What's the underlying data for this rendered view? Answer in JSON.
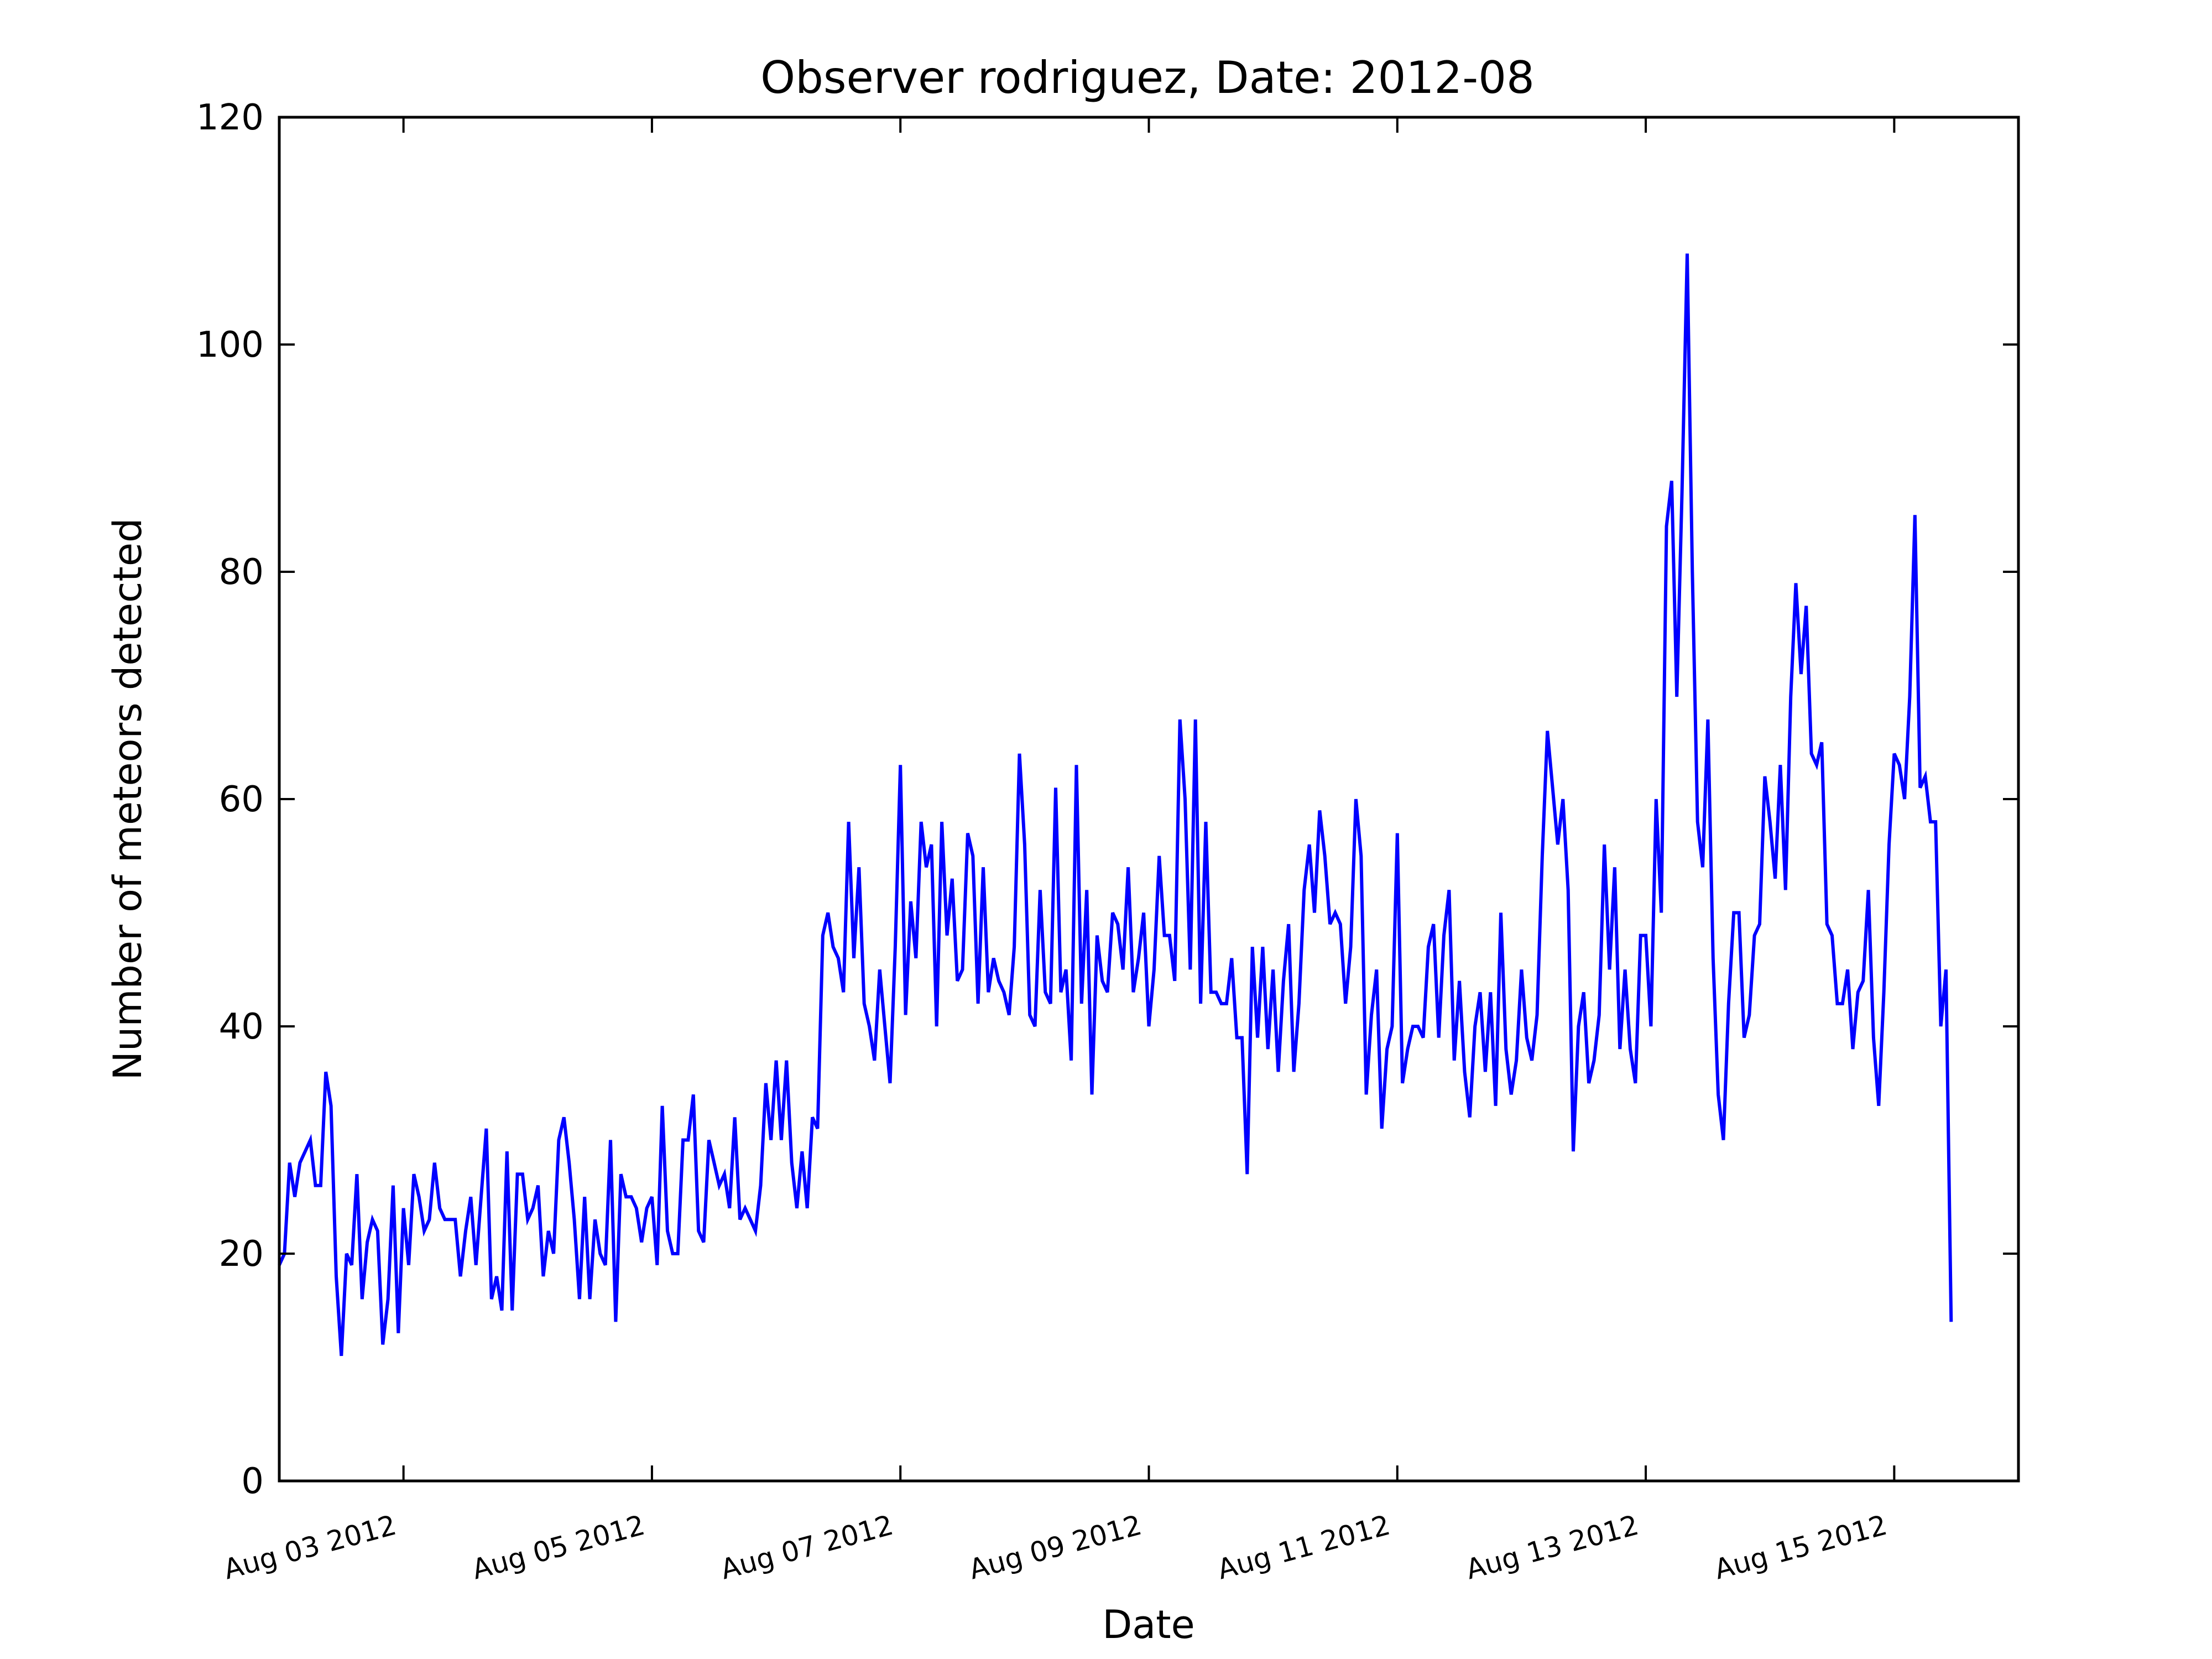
{
  "chart_data": {
    "type": "line",
    "title": "Observer rodriguez, Date: 2012-08",
    "xlabel": "Date",
    "ylabel": "Number of meteors detected",
    "ylim": [
      0,
      120
    ],
    "xlim": [
      "2012-08-02T00:00",
      "2012-08-16T00:00"
    ],
    "yticks": [
      0,
      20,
      40,
      60,
      80,
      100,
      120
    ],
    "xticks": [
      {
        "date": "2012-08-03",
        "label": "Aug 03 2012"
      },
      {
        "date": "2012-08-05",
        "label": "Aug 05 2012"
      },
      {
        "date": "2012-08-07",
        "label": "Aug 07 2012"
      },
      {
        "date": "2012-08-09",
        "label": "Aug 09 2012"
      },
      {
        "date": "2012-08-11",
        "label": "Aug 11 2012"
      },
      {
        "date": "2012-08-13",
        "label": "Aug 13 2012"
      },
      {
        "date": "2012-08-15",
        "label": "Aug 15 2012"
      }
    ],
    "grid": false,
    "line_color": "#0000ff",
    "x_start": "2012-08-02T00:00",
    "x_interval_hours": 1,
    "values": [
      19,
      20,
      28,
      25,
      28,
      29,
      30,
      26,
      26,
      36,
      33,
      18,
      11,
      20,
      19,
      27,
      16,
      21,
      23,
      22,
      12,
      16,
      26,
      13,
      24,
      19,
      27,
      25,
      22,
      23,
      28,
      24,
      23,
      23,
      23,
      18,
      22,
      25,
      19,
      25,
      31,
      16,
      18,
      15,
      29,
      15,
      27,
      27,
      23,
      24,
      26,
      18,
      22,
      20,
      30,
      32,
      28,
      23,
      16,
      25,
      16,
      23,
      20,
      19,
      30,
      14,
      27,
      25,
      25,
      24,
      21,
      24,
      25,
      19,
      33,
      22,
      20,
      20,
      30,
      30,
      34,
      22,
      21,
      30,
      28,
      26,
      27,
      24,
      32,
      23,
      24,
      23,
      22,
      26,
      35,
      30,
      37,
      30,
      37,
      28,
      24,
      29,
      24,
      32,
      31,
      48,
      50,
      47,
      46,
      43,
      58,
      46,
      54,
      42,
      40,
      37,
      45,
      40,
      35,
      47,
      63,
      41,
      51,
      46,
      58,
      54,
      56,
      40,
      58,
      48,
      53,
      44,
      45,
      57,
      55,
      42,
      54,
      43,
      46,
      44,
      43,
      41,
      47,
      64,
      56,
      41,
      40,
      52,
      43,
      42,
      61,
      43,
      45,
      37,
      63,
      42,
      52,
      34,
      48,
      44,
      43,
      50,
      49,
      45,
      54,
      43,
      46,
      50,
      40,
      45,
      55,
      48,
      48,
      44,
      67,
      60,
      45,
      67,
      42,
      58,
      43,
      43,
      42,
      42,
      46,
      39,
      39,
      27,
      47,
      39,
      47,
      38,
      45,
      36,
      44,
      49,
      36,
      42,
      52,
      56,
      50,
      59,
      55,
      49,
      50,
      49,
      42,
      47,
      60,
      55,
      34,
      41,
      45,
      31,
      38,
      40,
      57,
      35,
      38,
      40,
      40,
      39,
      47,
      49,
      39,
      48,
      52,
      37,
      44,
      36,
      32,
      40,
      43,
      36,
      43,
      33,
      50,
      38,
      34,
      37,
      45,
      39,
      37,
      41,
      55,
      66,
      61,
      56,
      60,
      52,
      29,
      40,
      43,
      35,
      37,
      41,
      56,
      45,
      54,
      38,
      45,
      38,
      35,
      48,
      48,
      40,
      60,
      50,
      84,
      88,
      69,
      87,
      108,
      80,
      58,
      54,
      67,
      46,
      34,
      30,
      42,
      50,
      50,
      39,
      41,
      48,
      49,
      62,
      58,
      53,
      63,
      52,
      69,
      79,
      71,
      77,
      64,
      63,
      65,
      49,
      48,
      42,
      42,
      45,
      38,
      43,
      44,
      52,
      39,
      33,
      43,
      56,
      64,
      63,
      60,
      69,
      85,
      61,
      62,
      58,
      58,
      40,
      45,
      14
    ]
  }
}
